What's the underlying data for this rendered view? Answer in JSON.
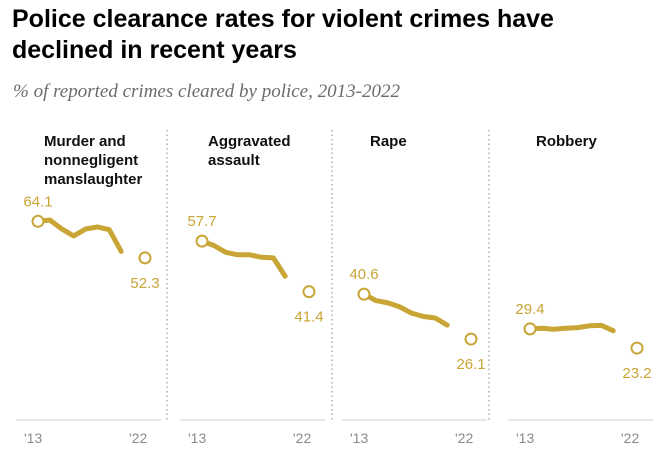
{
  "header": {
    "title": "Police clearance rates for violent crimes have declined in recent years",
    "subtitle": "% of reported crimes cleared by police, 2013-2022"
  },
  "colors": {
    "series": "#c8a535",
    "divider": "#9a9a9a",
    "axis": "#cfcfcf",
    "tick_text": "#8a8a8a"
  },
  "chart_data": {
    "type": "line",
    "title": "Police clearance rates for violent crimes have declined in recent years",
    "subtitle": "% of reported crimes cleared by police, 2013-2022",
    "x": [
      2013,
      2014,
      2015,
      2016,
      2017,
      2018,
      2019,
      2020,
      2021,
      2022
    ],
    "x_tick_labels": [
      "'13",
      "'22"
    ],
    "ylim": [
      0,
      100
    ],
    "note": "2021 value not shown; line ends at 2020, 2022 shown as an open marker",
    "panels": [
      {
        "title_lines": [
          "Murder and",
          "nonnegligent",
          "manslaughter"
        ],
        "values": [
          64.1,
          64.5,
          61.6,
          59.4,
          61.6,
          62.3,
          61.4,
          54.4,
          null,
          52.3
        ],
        "start_label": "64.1",
        "end_label": "52.3"
      },
      {
        "title_lines": [
          "Aggravated",
          "assault"
        ],
        "values": [
          57.7,
          56.3,
          54.1,
          53.3,
          53.3,
          52.5,
          52.3,
          46.4,
          null,
          41.4
        ],
        "start_label": "57.7",
        "end_label": "41.4"
      },
      {
        "title_lines": [
          "Rape"
        ],
        "values": [
          40.6,
          38.5,
          37.8,
          36.5,
          34.5,
          33.4,
          32.9,
          30.6,
          null,
          26.1
        ],
        "start_label": "40.6",
        "end_label": "26.1"
      },
      {
        "title_lines": [
          "Robbery"
        ],
        "values": [
          29.4,
          29.6,
          29.3,
          29.6,
          29.8,
          30.4,
          30.5,
          28.8,
          null,
          23.2
        ],
        "start_label": "29.4",
        "end_label": "23.2"
      }
    ]
  }
}
